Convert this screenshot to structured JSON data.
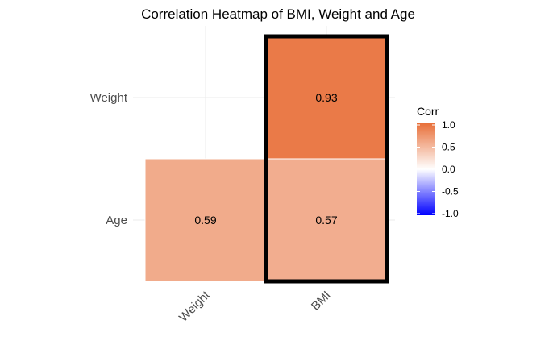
{
  "chart_data": {
    "type": "heatmap",
    "title": "Correlation Heatmap of BMI, Weight and Age",
    "x_categories": [
      "Weight",
      "BMI"
    ],
    "y_categories": [
      "Weight",
      "Age"
    ],
    "cells": [
      {
        "x": "BMI",
        "y": "Weight",
        "value": 0.93,
        "label": "0.93"
      },
      {
        "x": "Weight",
        "y": "Age",
        "value": 0.59,
        "label": "0.59"
      },
      {
        "x": "BMI",
        "y": "Age",
        "value": 0.57,
        "label": "0.57"
      }
    ],
    "highlighted_column": "BMI",
    "grid": true,
    "legend": {
      "title": "Corr",
      "placement": "right",
      "ticks": [
        "1.0",
        "0.5",
        "0.0",
        "-0.5",
        "-1.0"
      ],
      "tick_values": [
        1.0,
        0.5,
        0.0,
        -0.5,
        -1.0
      ],
      "range": [
        -1.0,
        1.0
      ],
      "colors": {
        "low": "#0000ff",
        "mid": "#ffffff",
        "high": "#e8703a"
      }
    }
  }
}
